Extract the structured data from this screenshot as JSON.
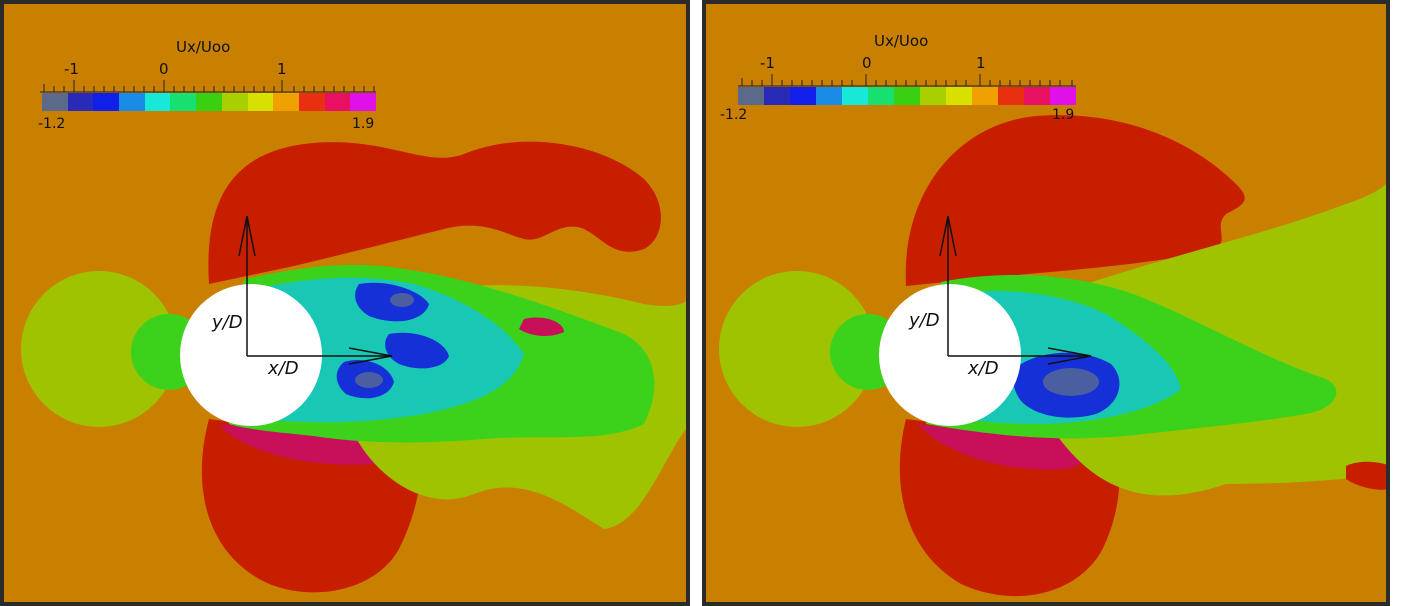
{
  "panels": [
    {
      "colorbar": {
        "title": "Ux/Uoo",
        "ticks": [
          "-1",
          "0",
          "1"
        ],
        "min_label": "-1.2",
        "max_label": "1.9"
      },
      "axes": {
        "y_label": "y/D",
        "x_label": "x/D"
      }
    },
    {
      "colorbar": {
        "title": "Ux/Uoo",
        "ticks": [
          "-1",
          "0",
          "1"
        ],
        "min_label": "-1.2",
        "max_label": "1.9"
      },
      "axes": {
        "y_label": "y/D",
        "x_label": "x/D"
      }
    }
  ],
  "colormap": [
    "#5b6a8a",
    "#2a2ab8",
    "#1020e8",
    "#1a8ce8",
    "#18e8d8",
    "#18e070",
    "#38d010",
    "#a8d000",
    "#d8e000",
    "#f0a000",
    "#e83010",
    "#e81060",
    "#e010e8"
  ],
  "colors": {
    "background": "#c98000",
    "high_velocity": "#c81e00",
    "very_high": "#c8105a",
    "freestream_low": "#9fc300",
    "green": "#3cd21c",
    "cyan": "#18c8b4",
    "blue": "#1630d8",
    "dark_blue": "#4a5ea0",
    "cylinder": "#ffffff"
  }
}
